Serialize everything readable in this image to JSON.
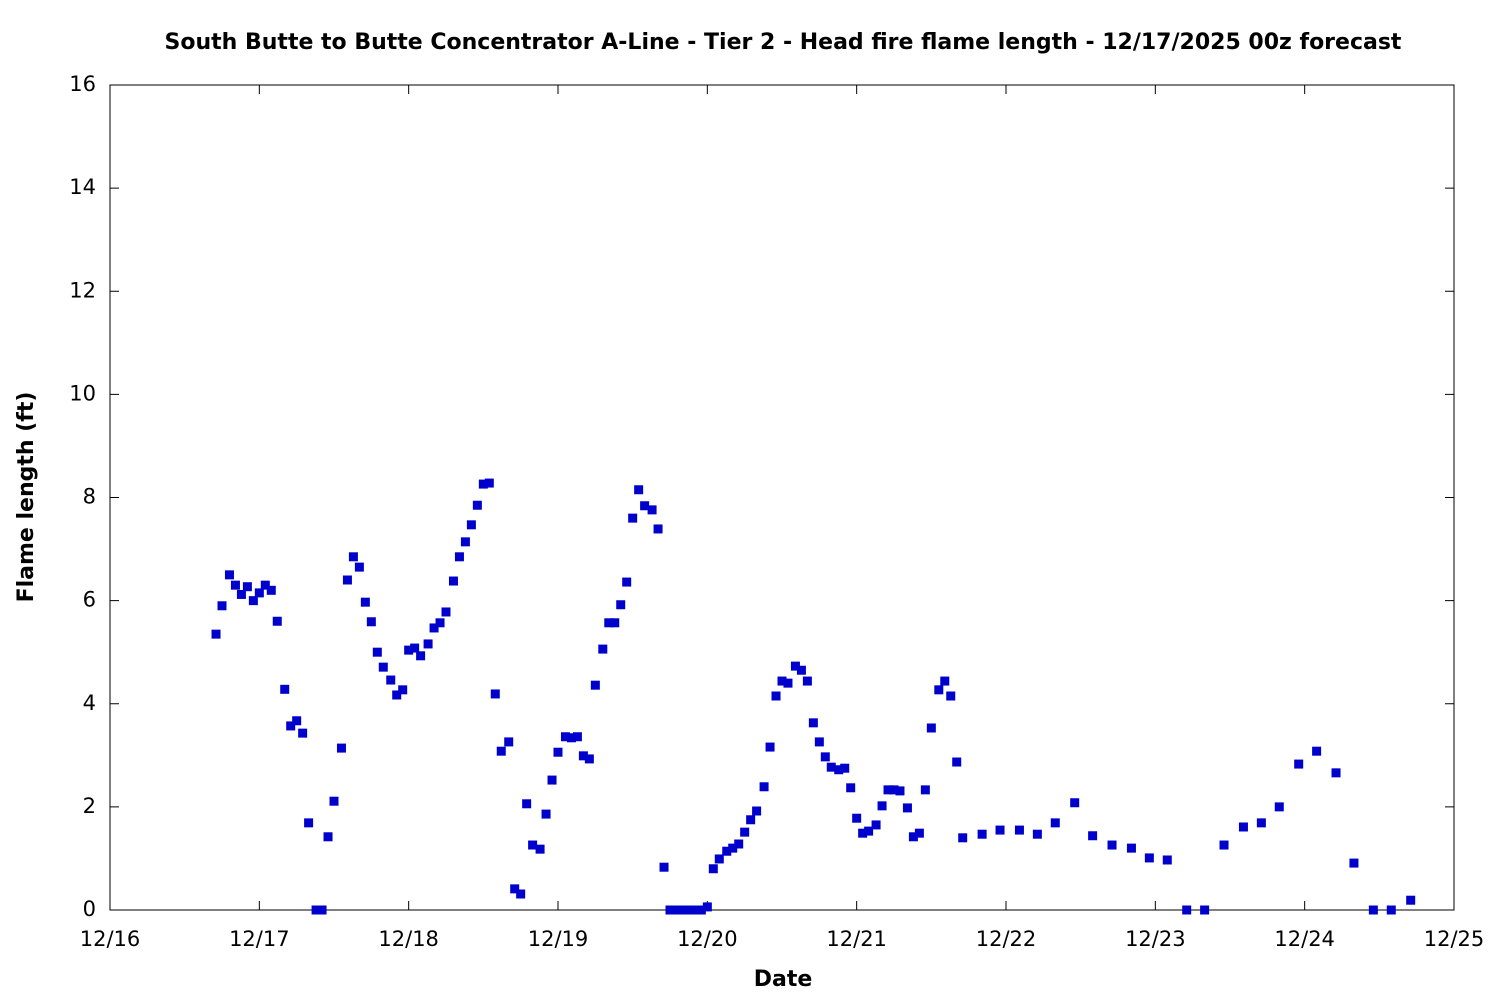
{
  "chart_data": {
    "type": "scatter",
    "title": "South Butte to Butte Concentrator A-Line - Tier 2 - Head fire flame length - 12/17/2025 00z forecast",
    "x_label": "Date",
    "y_label": "Flame length (ft)",
    "color": "#0000cc",
    "xlim": [
      16,
      25
    ],
    "xticks": [
      {
        "value": 16,
        "label": "12/16"
      },
      {
        "value": 17,
        "label": "12/17"
      },
      {
        "value": 18,
        "label": "12/18"
      },
      {
        "value": 19,
        "label": "12/19"
      },
      {
        "value": 20,
        "label": "12/20"
      },
      {
        "value": 21,
        "label": "12/21"
      },
      {
        "value": 22,
        "label": "12/22"
      },
      {
        "value": 23,
        "label": "12/23"
      },
      {
        "value": 24,
        "label": "12/24"
      },
      {
        "value": 25,
        "label": "12/25"
      }
    ],
    "ylim": [
      0,
      16
    ],
    "yticks": [
      0,
      2,
      4,
      6,
      8,
      10,
      12,
      14,
      16
    ],
    "x": [
      16.71,
      16.75,
      16.8,
      16.84,
      16.88,
      16.92,
      16.96,
      17.0,
      17.04,
      17.08,
      17.12,
      17.17,
      17.21,
      17.25,
      17.29,
      17.33,
      17.38,
      17.42,
      17.46,
      17.5,
      17.55,
      17.59,
      17.63,
      17.67,
      17.71,
      17.75,
      17.79,
      17.83,
      17.88,
      17.92,
      17.96,
      18.0,
      18.04,
      18.08,
      18.13,
      18.17,
      18.21,
      18.25,
      18.3,
      18.34,
      18.38,
      18.42,
      18.46,
      18.5,
      18.54,
      18.58,
      18.62,
      18.67,
      18.71,
      18.75,
      18.79,
      18.83,
      18.88,
      18.92,
      18.96,
      19.0,
      19.05,
      19.09,
      19.13,
      19.17,
      19.21,
      19.25,
      19.3,
      19.34,
      19.38,
      19.42,
      19.46,
      19.5,
      19.54,
      19.58,
      19.63,
      19.67,
      19.71,
      19.75,
      19.79,
      19.84,
      19.88,
      19.92,
      19.96,
      20.0,
      20.04,
      20.08,
      20.13,
      20.17,
      20.21,
      20.25,
      20.29,
      20.33,
      20.38,
      20.42,
      20.46,
      20.5,
      20.54,
      20.59,
      20.63,
      20.67,
      20.71,
      20.75,
      20.79,
      20.83,
      20.88,
      20.92,
      20.96,
      21.0,
      21.04,
      21.08,
      21.13,
      21.17,
      21.21,
      21.25,
      21.29,
      21.34,
      21.38,
      21.42,
      21.46,
      21.5,
      21.55,
      21.59,
      21.63,
      21.67,
      21.71,
      21.84,
      21.96,
      22.09,
      22.21,
      22.33,
      22.46,
      22.58,
      22.71,
      22.84,
      22.96,
      23.08,
      23.21,
      23.33,
      23.46,
      23.59,
      23.71,
      23.83,
      23.96,
      24.08,
      24.21,
      24.33,
      24.46,
      24.58,
      24.71
    ],
    "values": [
      5.35,
      5.9,
      6.5,
      6.3,
      6.12,
      6.27,
      6.0,
      6.15,
      6.3,
      6.2,
      5.6,
      4.28,
      3.57,
      3.67,
      3.43,
      1.69,
      0,
      0,
      1.42,
      2.11,
      3.14,
      6.4,
      6.85,
      6.65,
      5.97,
      5.59,
      5.0,
      4.71,
      4.46,
      4.17,
      4.27,
      5.04,
      5.08,
      4.93,
      5.16,
      5.47,
      5.57,
      5.78,
      6.38,
      6.85,
      7.14,
      7.47,
      7.85,
      8.26,
      8.28,
      4.19,
      3.08,
      3.26,
      0.41,
      0.31,
      2.06,
      1.26,
      1.18,
      1.86,
      2.52,
      3.06,
      3.36,
      3.34,
      3.36,
      2.99,
      2.93,
      4.36,
      5.06,
      5.57,
      5.57,
      5.92,
      6.36,
      7.6,
      8.15,
      7.84,
      7.76,
      7.39,
      0.83,
      0,
      0,
      0,
      0,
      0,
      0,
      0.06,
      0.8,
      0.99,
      1.14,
      1.2,
      1.28,
      1.51,
      1.75,
      1.92,
      2.39,
      3.16,
      4.15,
      4.44,
      4.4,
      4.73,
      4.65,
      4.44,
      3.63,
      3.26,
      2.97,
      2.77,
      2.72,
      2.75,
      2.37,
      1.78,
      1.49,
      1.53,
      1.65,
      2.02,
      2.33,
      2.33,
      2.31,
      1.98,
      1.42,
      1.49,
      2.33,
      3.53,
      4.27,
      4.44,
      4.15,
      2.87,
      1.4,
      1.47,
      1.55,
      1.55,
      1.47,
      1.69,
      2.08,
      1.44,
      1.26,
      1.2,
      1.01,
      0.97,
      0,
      0,
      1.26,
      1.61,
      1.69,
      2.0,
      2.83,
      3.08,
      2.66,
      0.91,
      0,
      0,
      0.19
    ]
  }
}
